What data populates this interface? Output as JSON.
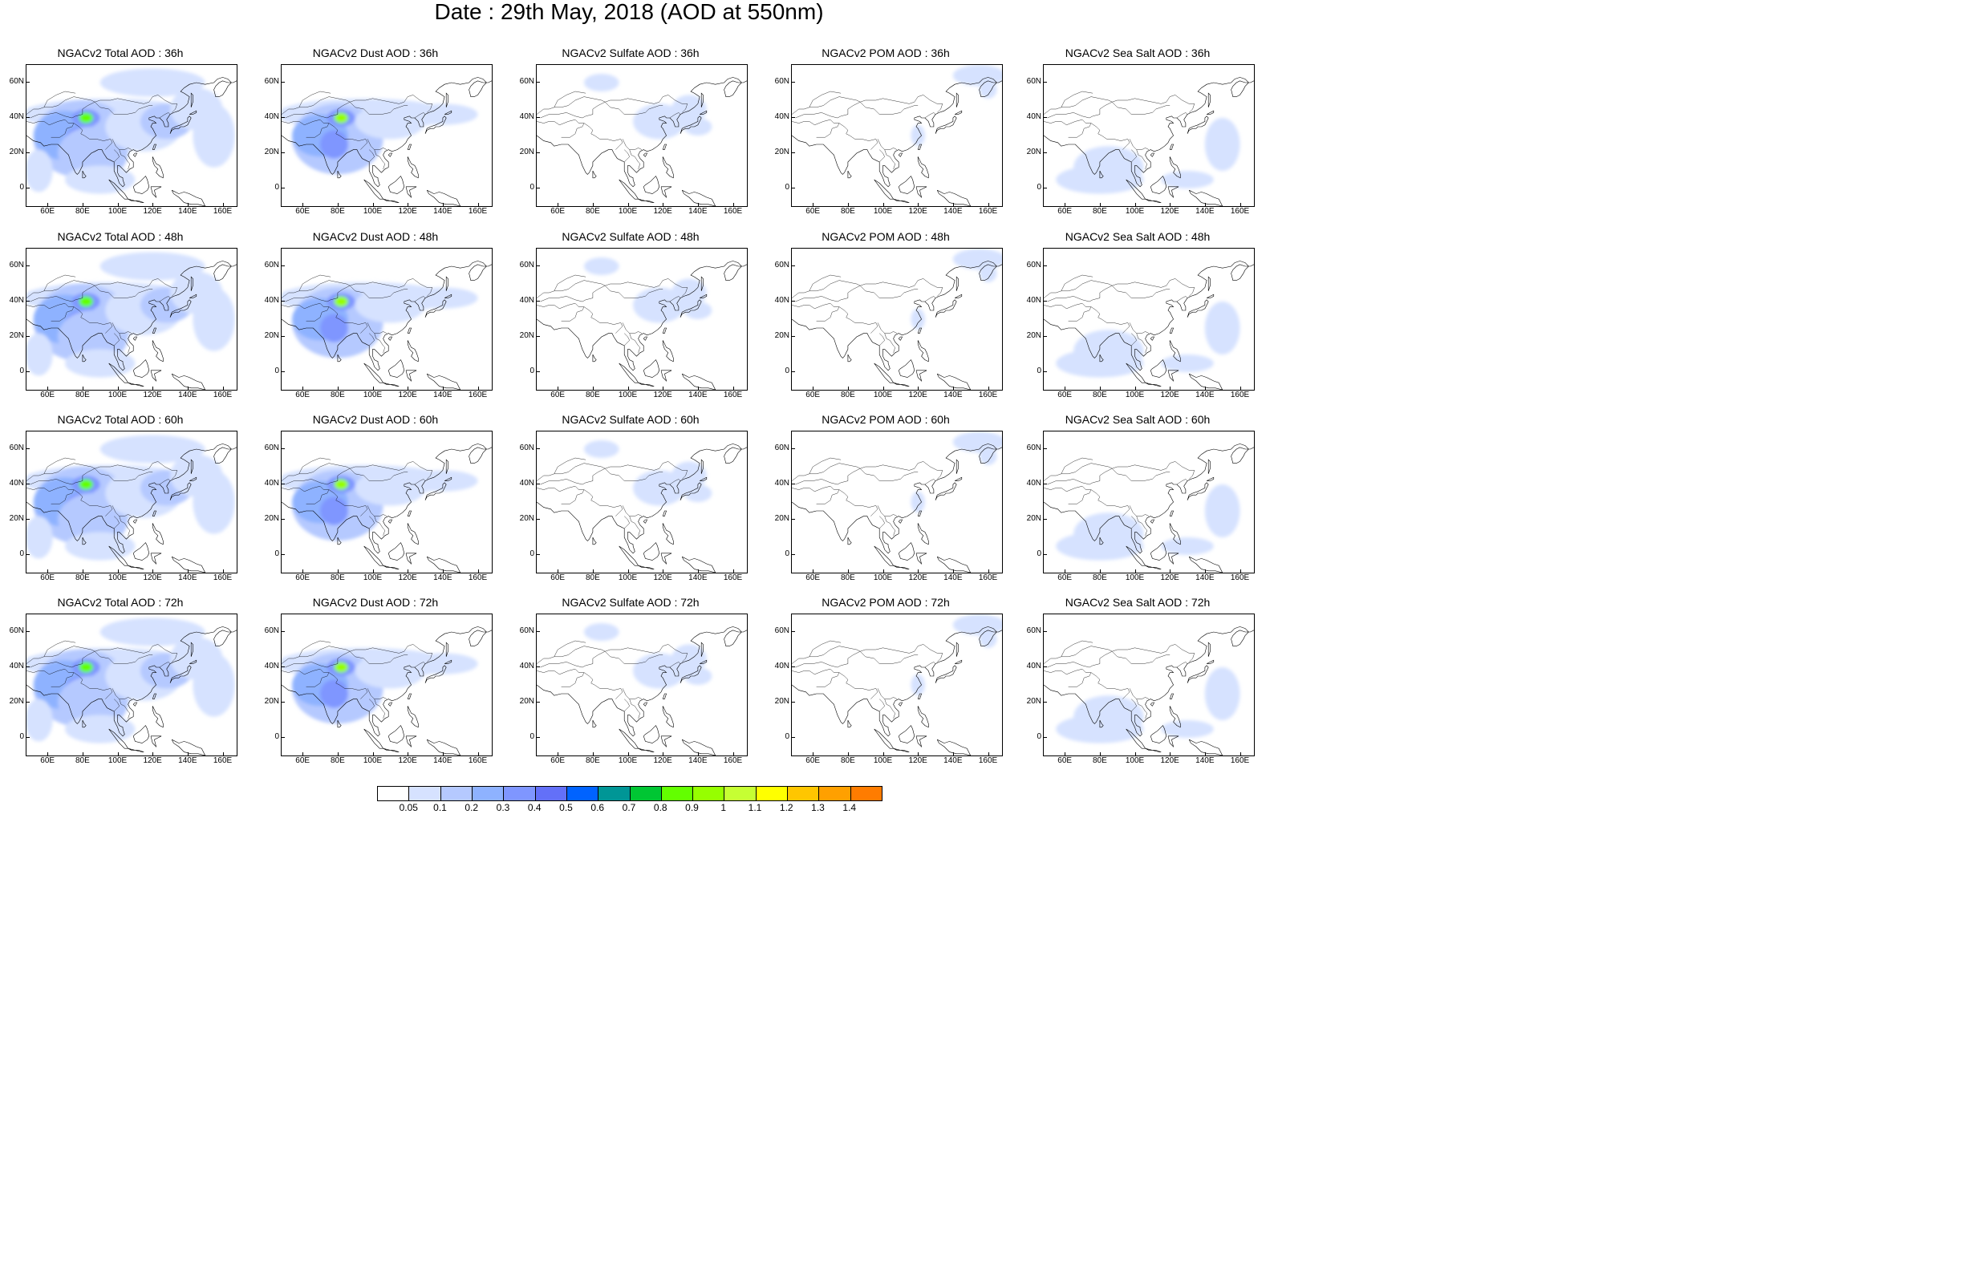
{
  "title": "Date : 29th May, 2018 (AOD at 550nm)",
  "axes": {
    "lat_labels": [
      "60N",
      "40N",
      "20N",
      "0"
    ],
    "lat_values": [
      60,
      40,
      20,
      0
    ],
    "lon_labels": [
      "60E",
      "80E",
      "100E",
      "120E",
      "140E",
      "160E"
    ],
    "lon_values": [
      60,
      80,
      100,
      120,
      140,
      160
    ],
    "lon_range": [
      48,
      168
    ],
    "lat_range": [
      -10,
      70
    ]
  },
  "panels": [
    {
      "title": "NGACv2 Total AOD : 36h",
      "species": "total"
    },
    {
      "title": "NGACv2 Dust AOD : 36h",
      "species": "dust"
    },
    {
      "title": "NGACv2 Sulfate AOD : 36h",
      "species": "sulfate"
    },
    {
      "title": "NGACv2 POM AOD : 36h",
      "species": "pom"
    },
    {
      "title": "NGACv2 Sea Salt AOD : 36h",
      "species": "seasalt"
    },
    {
      "title": "NGACv2 Total AOD : 48h",
      "species": "total"
    },
    {
      "title": "NGACv2 Dust AOD : 48h",
      "species": "dust"
    },
    {
      "title": "NGACv2 Sulfate AOD : 48h",
      "species": "sulfate"
    },
    {
      "title": "NGACv2 POM AOD : 48h",
      "species": "pom"
    },
    {
      "title": "NGACv2 Sea Salt AOD : 48h",
      "species": "seasalt"
    },
    {
      "title": "NGACv2 Total AOD : 60h",
      "species": "total"
    },
    {
      "title": "NGACv2 Dust AOD : 60h",
      "species": "dust"
    },
    {
      "title": "NGACv2 Sulfate AOD : 60h",
      "species": "sulfate"
    },
    {
      "title": "NGACv2 POM AOD : 60h",
      "species": "pom"
    },
    {
      "title": "NGACv2 Sea Salt AOD : 60h",
      "species": "seasalt"
    },
    {
      "title": "NGACv2 Total AOD : 72h",
      "species": "total"
    },
    {
      "title": "NGACv2 Dust AOD : 72h",
      "species": "dust"
    },
    {
      "title": "NGACv2 Sulfate AOD : 72h",
      "species": "sulfate"
    },
    {
      "title": "NGACv2 POM AOD : 72h",
      "species": "pom"
    },
    {
      "title": "NGACv2 Sea Salt  AOD : 72h",
      "species": "seasalt"
    }
  ],
  "colorbar": {
    "labels": [
      "0.05",
      "0.1",
      "0.2",
      "0.3",
      "0.4",
      "0.5",
      "0.6",
      "0.7",
      "0.8",
      "0.9",
      "1",
      "1.1",
      "1.2",
      "1.3",
      "1.4"
    ],
    "colors": [
      "#ffffff",
      "#d6e2ff",
      "#b5c9ff",
      "#8eb2ff",
      "#7f96ff",
      "#6370f8",
      "#0063ff",
      "#009696",
      "#00c633",
      "#63ff00",
      "#96ff00",
      "#c6ff33",
      "#ffff00",
      "#ffc600",
      "#ffa000",
      "#ff7c00",
      "#ff1900"
    ]
  }
}
